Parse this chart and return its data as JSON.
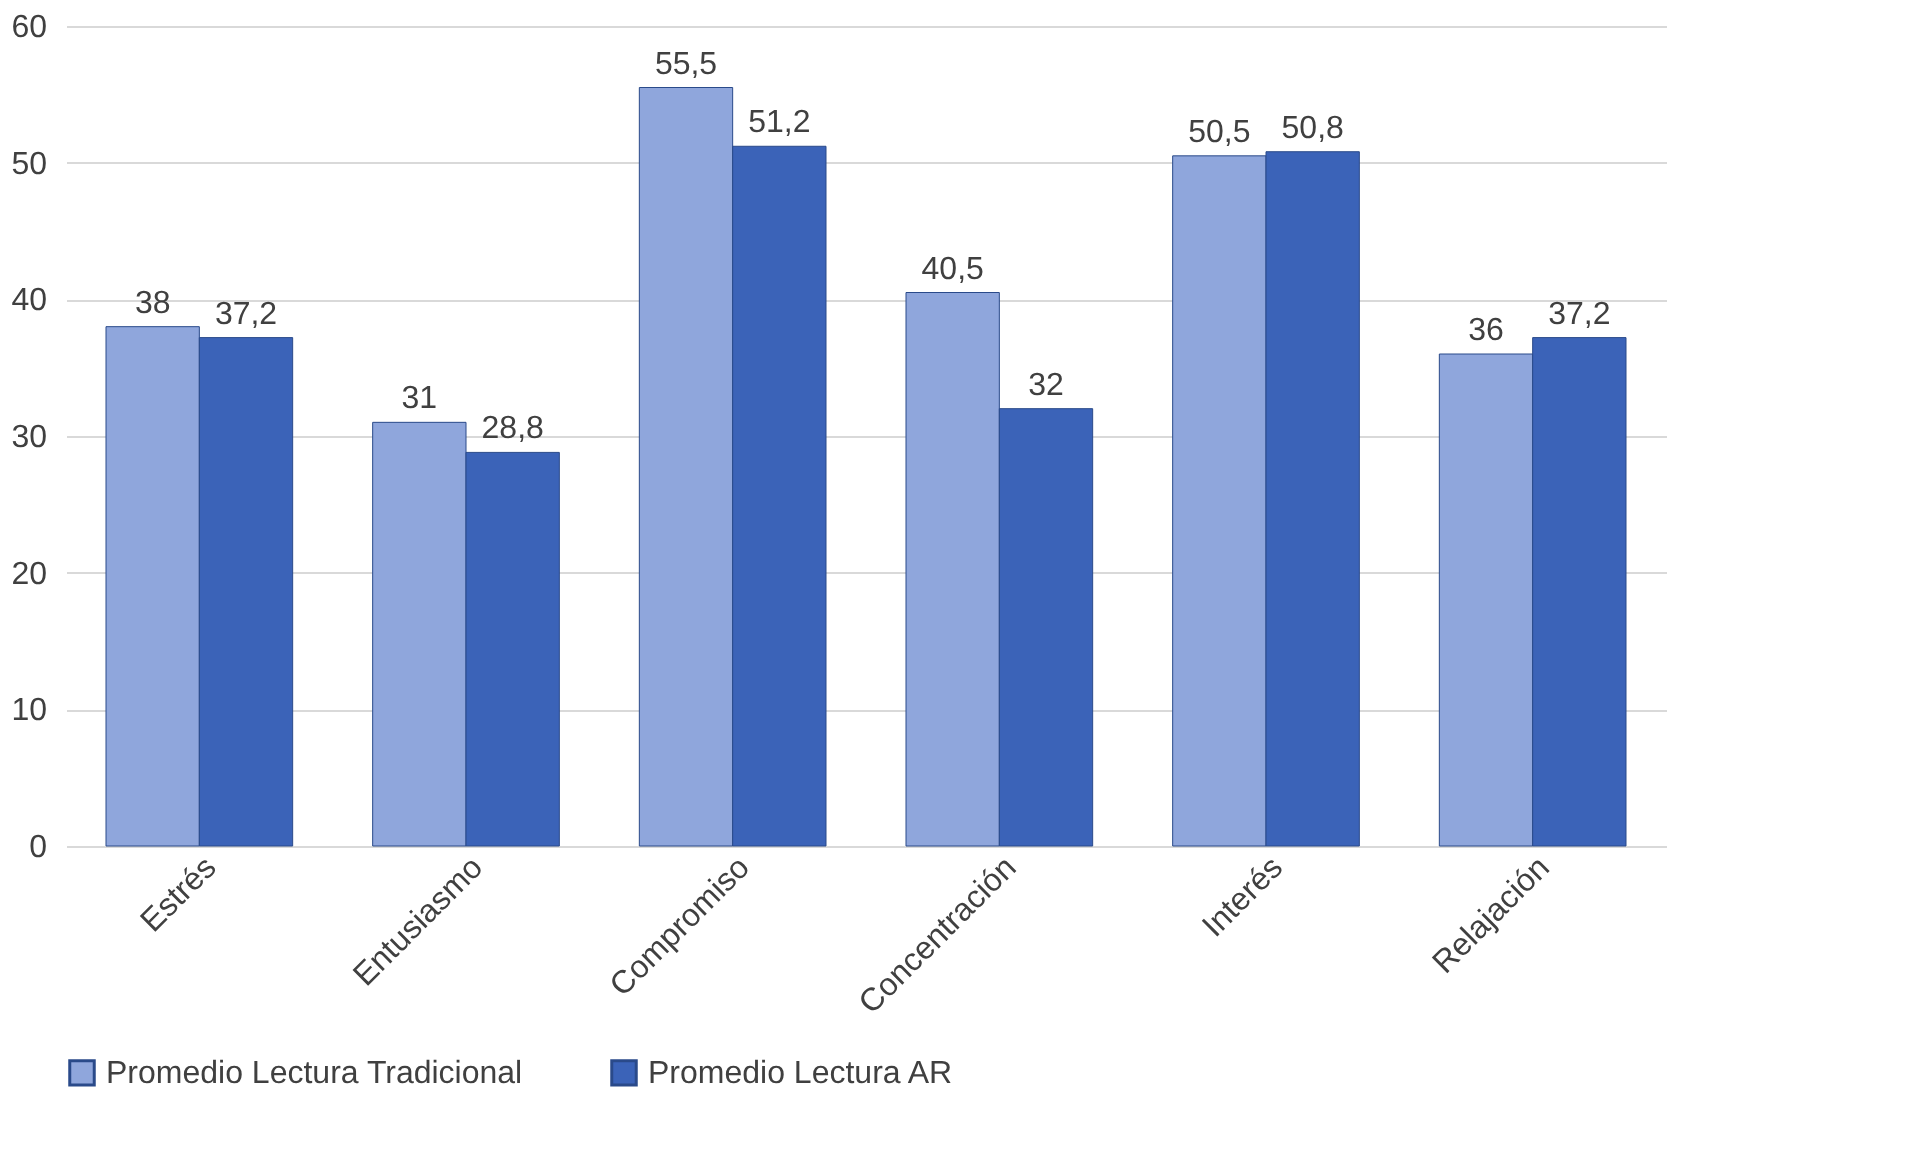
{
  "chart_data": {
    "type": "bar",
    "categories": [
      "Estrés",
      "Entusiasmo",
      "Compromiso",
      "Concentración",
      "Interés",
      "Relajación"
    ],
    "series": [
      {
        "name": "Promedio Lectura Tradicional",
        "color": "#8fa6dc",
        "values": [
          38,
          31,
          55.5,
          40.5,
          50.5,
          36
        ],
        "value_labels": [
          "38",
          "31",
          "55,5",
          "40,5",
          "50,5",
          "36"
        ]
      },
      {
        "name": "Promedio Lectura AR",
        "color": "#3b63b8",
        "values": [
          37.2,
          28.8,
          51.2,
          32,
          50.8,
          37.2
        ],
        "value_labels": [
          "37,2",
          "28,8",
          "51,2",
          "32",
          "50,8",
          "37,2"
        ]
      }
    ],
    "ylim": [
      0,
      60
    ],
    "yticks": [
      0,
      10,
      20,
      30,
      40,
      50,
      60
    ],
    "grid": "y",
    "legend": "bottom"
  }
}
